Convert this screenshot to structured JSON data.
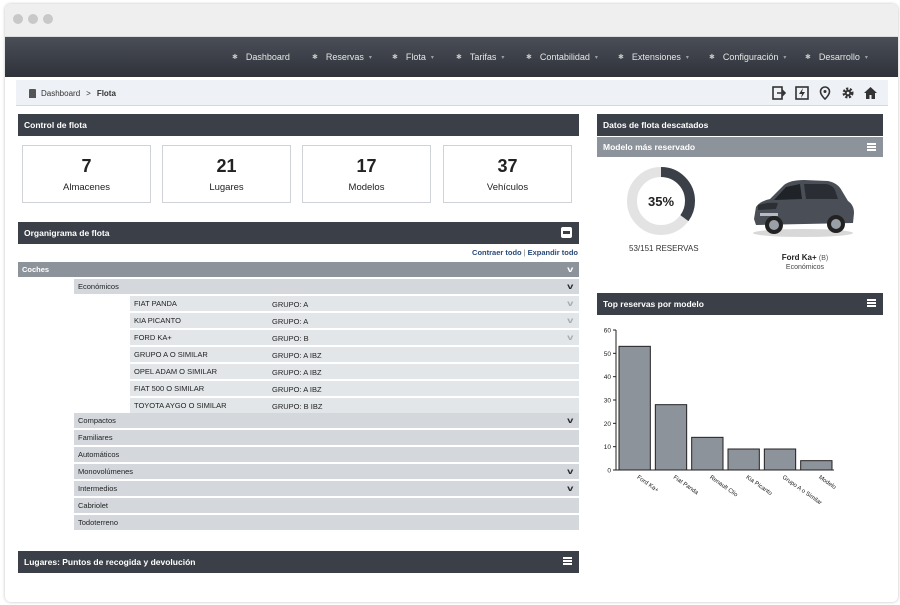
{
  "nav": {
    "items": [
      {
        "label": "Dashboard",
        "has_caret": false
      },
      {
        "label": "Reservas",
        "has_caret": true
      },
      {
        "label": "Flota",
        "has_caret": true
      },
      {
        "label": "Tarifas",
        "has_caret": true
      },
      {
        "label": "Contabilidad",
        "has_caret": true
      },
      {
        "label": "Extensiones",
        "has_caret": true
      },
      {
        "label": "Configuración",
        "has_caret": true
      },
      {
        "label": "Desarrollo",
        "has_caret": true
      }
    ]
  },
  "breadcrumb": {
    "home": "Dashboard",
    "separator": ">",
    "current": "Flota"
  },
  "toolbar": {
    "icons": [
      "logout-icon",
      "energy-icon",
      "location-pin-icon",
      "settings-gear-icon",
      "home-icon"
    ]
  },
  "fleet_control": {
    "title": "Control de flota",
    "stats": [
      {
        "value": "7",
        "label": "Almacenes"
      },
      {
        "value": "21",
        "label": "Lugares"
      },
      {
        "value": "17",
        "label": "Modelos"
      },
      {
        "value": "37",
        "label": "Vehículos"
      }
    ]
  },
  "org_chart": {
    "title": "Organigrama de flota",
    "collapse_label": "Contraer todo",
    "separator": "|",
    "expand_label": "Expandir todo",
    "root": "Coches",
    "sub_category": "Económicos",
    "vehicles": [
      {
        "name": "FIAT PANDA",
        "group": "GRUPO: A"
      },
      {
        "name": "KIA PICANTO",
        "group": "GRUPO: A"
      },
      {
        "name": "FORD KA+",
        "group": "GRUPO: B"
      },
      {
        "name": "GRUPO A O SIMILAR",
        "group": "GRUPO: A IBZ"
      },
      {
        "name": "OPEL ADAM O SIMILAR",
        "group": "GRUPO: A IBZ"
      },
      {
        "name": "FIAT 500 O SIMILAR",
        "group": "GRUPO: A IBZ"
      },
      {
        "name": "TOYOTA AYGO O SIMILAR",
        "group": "GRUPO: B IBZ"
      }
    ],
    "categories": [
      "Compactos",
      "Familiares",
      "Automáticos",
      "Monovolúmenes",
      "Intermedios",
      "Cabriolet",
      "Todoterreno"
    ]
  },
  "locations": {
    "title": "Lugares: Puntos de recogida y devolución"
  },
  "featured": {
    "title": "Datos de flota descatados",
    "most_booked_title": "Modelo más reservado",
    "percent": 35,
    "percent_label": "35%",
    "reservations_label": "53/151 RESERVAS",
    "car_name": "Ford Ka+",
    "car_group": "(B)",
    "car_category": "Económicos",
    "colors": {
      "donut_fill": "#3b3f47",
      "donut_track": "#e3e3e3"
    }
  },
  "top_models": {
    "title": "Top reservas por modelo"
  },
  "chart_data": {
    "type": "bar",
    "title": "Top reservas por modelo",
    "categories": [
      "Ford Ka+",
      "Fiat Panda",
      "Renault Clio",
      "Kia Picanto",
      "Grupo A o Similar",
      "Modelo"
    ],
    "values": [
      53,
      28,
      14,
      9,
      9,
      4
    ],
    "ylim": [
      0,
      60
    ],
    "yticks": [
      0,
      10,
      20,
      30,
      40,
      50,
      60
    ],
    "grid": false,
    "bar_color": "#8d939b"
  }
}
